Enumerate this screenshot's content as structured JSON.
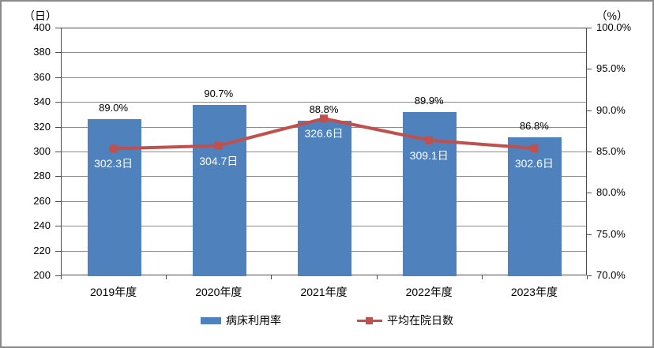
{
  "chart_data": {
    "type": "bar+line combo",
    "title": "",
    "categories": [
      "2019年度",
      "2020年度",
      "2021年度",
      "2022年度",
      "2023年度"
    ],
    "series": [
      {
        "name": "病床利用率",
        "type": "bar",
        "axis": "right",
        "unit": "%",
        "color": "#4f81bd",
        "values": [
          89.0,
          90.7,
          88.8,
          89.9,
          86.8
        ],
        "labels": [
          "89.0%",
          "90.7%",
          "88.8%",
          "89.9%",
          "86.8%"
        ]
      },
      {
        "name": "平均在院日数",
        "type": "line",
        "axis": "left",
        "unit": "日",
        "color": "#c0504d",
        "values": [
          302.3,
          304.7,
          326.6,
          309.1,
          302.6
        ],
        "labels": [
          "302.3日",
          "304.7日",
          "326.6日",
          "309.1日",
          "302.6日"
        ]
      }
    ],
    "left_axis": {
      "label": "（日）",
      "min": 200,
      "max": 400,
      "step": 20,
      "ticks": [
        "400",
        "380",
        "360",
        "340",
        "320",
        "300",
        "280",
        "260",
        "240",
        "220",
        "200"
      ]
    },
    "right_axis": {
      "label": "（%）",
      "min": 70,
      "max": 100,
      "step": 5,
      "ticks": [
        "100.0%",
        "95.0%",
        "90.0%",
        "85.0%",
        "80.0%",
        "75.0%",
        "70.0%"
      ]
    },
    "grid": true,
    "legend_position": "bottom"
  },
  "legend": {
    "items": [
      {
        "label": "病床利用率",
        "swatch": "bar",
        "color": "#4f81bd"
      },
      {
        "label": "平均在院日数",
        "swatch": "line-marker",
        "color": "#c0504d"
      }
    ]
  },
  "colors": {
    "bar": "#4f81bd",
    "line": "#c0504d",
    "gridline": "#8c8c8c",
    "axis": "#4d4d4d",
    "frame_border": "#8a8a8a",
    "bar_inner_label": "#ffffff"
  }
}
